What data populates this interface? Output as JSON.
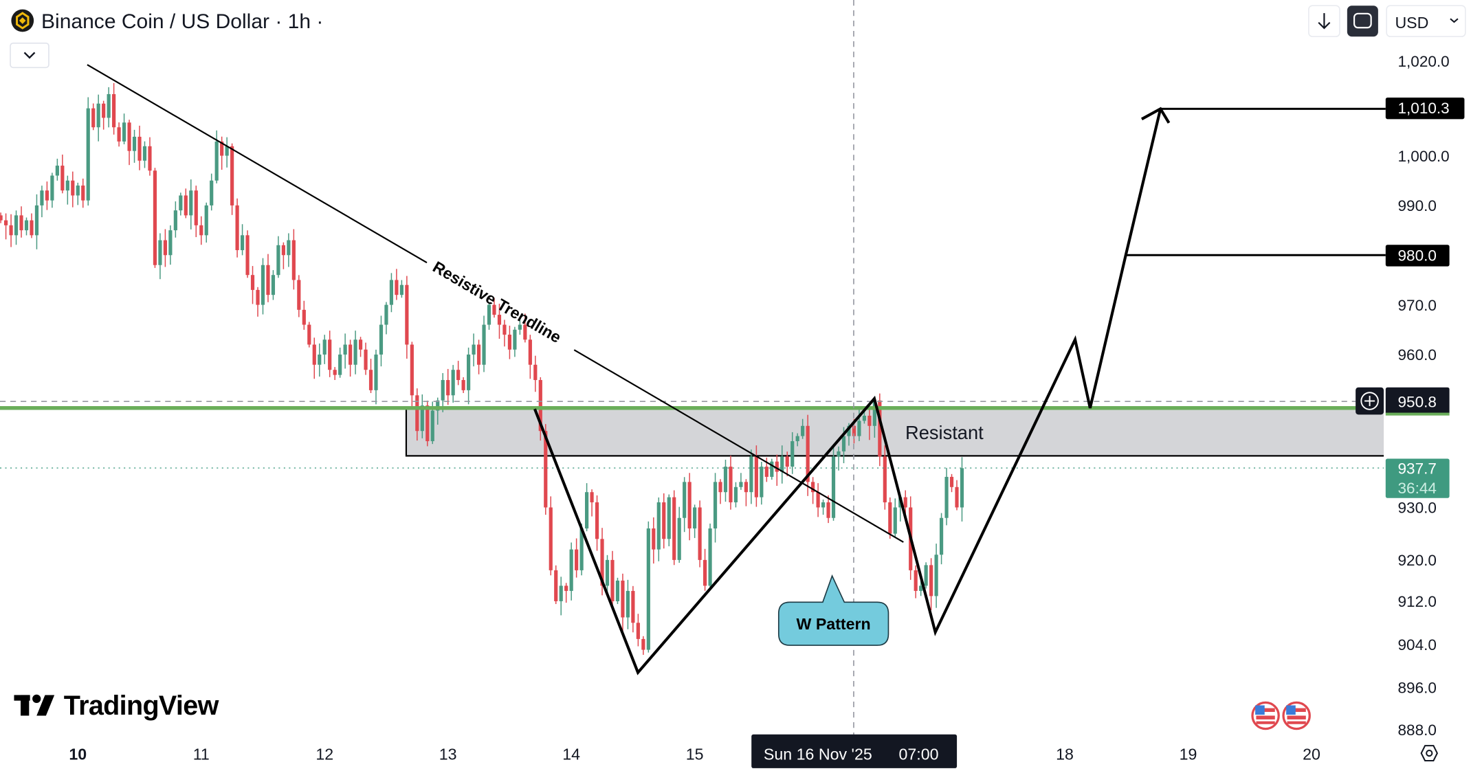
{
  "header": {
    "title": "Binance Coin / US Dollar · 1h ·",
    "currency": "USD",
    "symbol_icon": "bnb-logo-icon",
    "collapse_icon": "chevron-down-icon",
    "scroll_icon": "arrow-down-icon",
    "fullscreen_icon": "fullscreen-icon"
  },
  "logo": "TradingView",
  "annotations": {
    "trendline_label": "Resistive Trendline",
    "zone_label": "Resistant",
    "callout": "W Pattern",
    "target_high": "1,010.3",
    "target_mid": "980.0",
    "crosshair_price": "950.8",
    "crosshair_date": "Sun 16 Nov '25",
    "crosshair_time": "07:00"
  },
  "colors": {
    "up": "#4a9a82",
    "down": "#e0484f",
    "support_line": "#6aae5a",
    "zone": "#d4d5d8",
    "callout": "#74cbdd",
    "last_price": "#3f9a80"
  },
  "chart_data": {
    "type": "candlestick",
    "interval": "1h",
    "x_ticks": [
      {
        "label": "10",
        "day": 10,
        "bold": true
      },
      {
        "label": "11",
        "day": 11
      },
      {
        "label": "12",
        "day": 12
      },
      {
        "label": "13",
        "day": 13
      },
      {
        "label": "14",
        "day": 14
      },
      {
        "label": "15",
        "day": 15
      },
      {
        "label": "18",
        "day": 18
      },
      {
        "label": "19",
        "day": 19
      },
      {
        "label": "20",
        "day": 20
      }
    ],
    "y_ticks": [
      {
        "label": "1,020.0",
        "value": 1020
      },
      {
        "label": "1,000.0",
        "value": 1000
      },
      {
        "label": "990.0",
        "value": 990
      },
      {
        "label": "970.0",
        "value": 970
      },
      {
        "label": "960.0",
        "value": 960
      },
      {
        "label": "930.0",
        "value": 930
      },
      {
        "label": "920.0",
        "value": 920
      },
      {
        "label": "912.0",
        "value": 912
      },
      {
        "label": "904.0",
        "value": 904
      },
      {
        "label": "896.0",
        "value": 896
      },
      {
        "label": "888.0",
        "value": 888
      }
    ],
    "last_price": "937.7",
    "bar_countdown": "36:44",
    "closes": [
      987,
      986,
      984,
      988,
      985,
      987,
      984,
      990,
      993,
      991,
      996,
      998,
      993,
      995,
      992,
      994,
      991,
      1010,
      1006,
      1011,
      1008,
      1013,
      1006,
      1003,
      1007,
      1001,
      1004,
      999,
      1002,
      997,
      978,
      983,
      980,
      985,
      989,
      992,
      988,
      993,
      986,
      984,
      990,
      995,
      1003,
      1000,
      1002,
      990,
      981,
      984,
      976,
      973,
      970,
      978,
      972,
      976,
      982,
      980,
      983,
      975,
      969,
      966,
      962,
      958,
      960,
      963,
      957,
      956,
      960,
      962,
      958,
      963,
      961,
      957,
      953,
      960,
      966,
      970,
      975,
      972,
      974,
      962,
      952,
      945,
      950,
      943,
      949,
      951,
      955,
      952,
      957,
      955,
      953,
      960,
      962,
      958,
      966,
      970,
      968,
      966,
      964,
      961,
      965,
      966,
      963,
      958,
      955,
      945,
      930,
      918,
      912,
      915,
      914,
      922,
      918,
      926,
      933,
      931,
      924,
      915,
      920,
      912,
      916,
      909,
      914,
      908,
      905,
      903,
      926,
      922,
      931,
      924,
      932,
      920,
      928,
      935,
      926,
      930,
      920,
      915,
      926,
      935,
      933,
      938,
      931,
      934,
      935,
      933,
      940,
      932,
      938,
      936,
      939,
      937,
      940,
      938,
      943,
      944,
      946,
      935,
      933,
      930,
      931,
      928,
      940,
      941,
      944,
      946,
      944,
      947,
      948,
      946,
      951,
      940,
      931,
      925,
      930,
      932,
      930,
      918,
      914,
      915,
      919,
      913,
      921,
      928,
      936,
      934,
      930,
      937.7
    ]
  }
}
